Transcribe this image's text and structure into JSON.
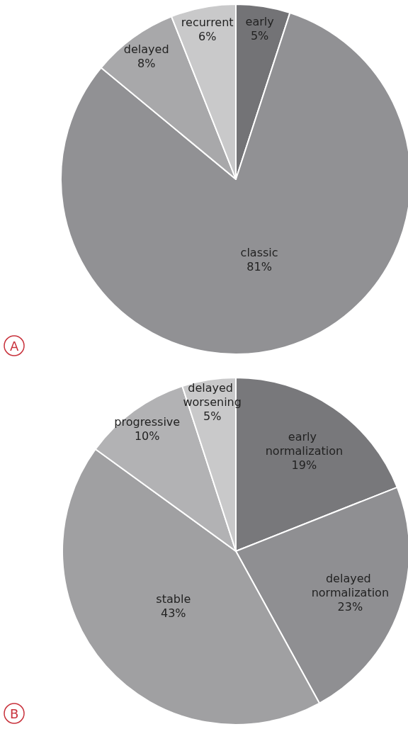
{
  "chart_data": [
    {
      "type": "pie",
      "title": "A",
      "categories": [
        "early",
        "classic",
        "delayed",
        "recurrent"
      ],
      "values": [
        5,
        81,
        8,
        6
      ],
      "value_labels": [
        "5%",
        "81%",
        "8%",
        "6%"
      ],
      "colors": [
        "#737376",
        "#919194",
        "#a8a8aa",
        "#c9c9ca"
      ],
      "legend": false
    },
    {
      "type": "pie",
      "title": "B",
      "categories": [
        "early normalization",
        "delayed normalization",
        "stable",
        "progressive",
        "delayed worsening"
      ],
      "values": [
        19,
        23,
        43,
        10,
        5
      ],
      "value_labels": [
        "19%",
        "23%",
        "43%",
        "10%",
        "5%"
      ],
      "colors": [
        "#78787b",
        "#8f8f92",
        "#a0a0a2",
        "#b2b2b4",
        "#c9c9ca"
      ],
      "legend": false
    }
  ]
}
